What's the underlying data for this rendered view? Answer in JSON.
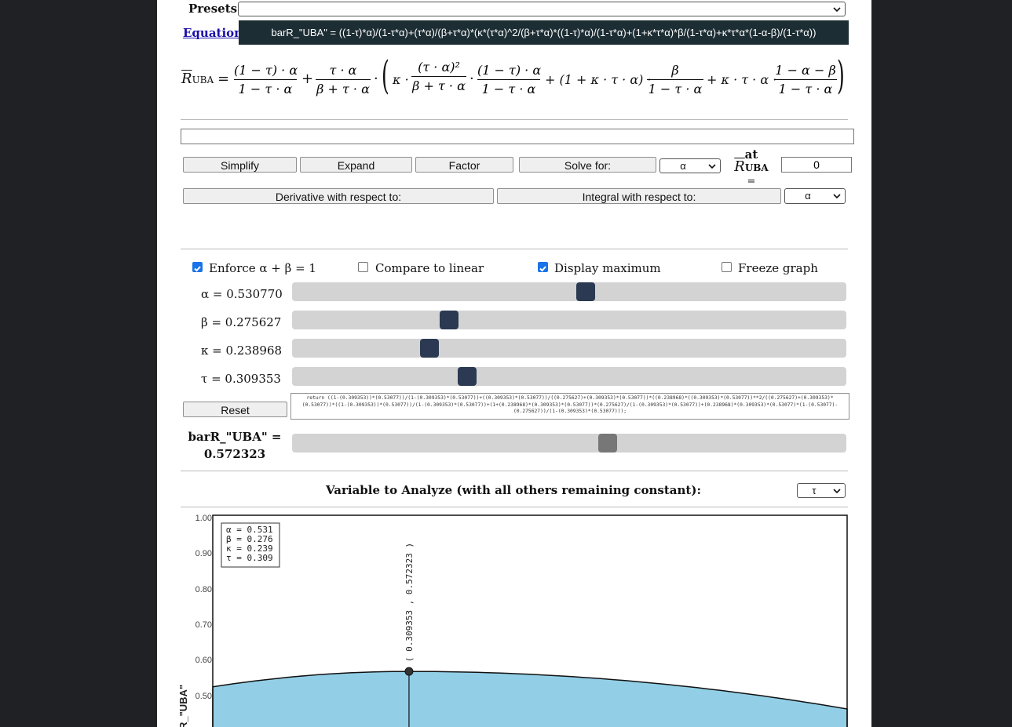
{
  "presets": {
    "label": "Presets",
    "selected": ""
  },
  "equation": {
    "link": "Equation",
    "text": "barR_\"UBA\" = ((1-τ)*α)/(1-τ*α)+(τ*α)/(β+τ*α)*(κ*(τ*α)^2/(β+τ*α)*((1-τ)*α)/(1-τ*α)+(1+κ*τ*α)*β/(1-τ*α)+κ*τ*α*(1-α-β)/(1-τ*α))"
  },
  "rendered": {
    "lhs": "R",
    "lhs_sub": "UBA",
    "f1_num": "(1 − τ) · α",
    "f1_den": "1 − τ · α",
    "f2_num": "τ · α",
    "f2_den": "β + τ · α",
    "f3_num": "(τ · α)²",
    "f3_den": "β + τ · α",
    "f4_num": "(1 − τ) · α",
    "f4_den": "1 − τ · α",
    "f5_num": "β",
    "f5_den": "1 − τ · α",
    "f6_num": "1 − α − β",
    "f6_den": "1 − τ · α",
    "eq": "=",
    "plus": "+",
    "dot": "·",
    "kappa_dot": "κ ·",
    "mid_term": "+ (1 + κ · τ · α) ·",
    "last_term": "+ κ · τ · α ·"
  },
  "tools": {
    "expression_input": "",
    "simplify": "Simplify",
    "expand": "Expand",
    "factor": "Factor",
    "solve_for": "Solve for:",
    "solve_var": "α",
    "at_label": "at",
    "at_symbol": "R",
    "at_sub": "UBA",
    "at_eq": "=",
    "at_value": "0",
    "derivative": "Derivative with respect to:",
    "integral": "Integral with respect to:",
    "integral_var": "α"
  },
  "options": {
    "enforce": {
      "label": "Enforce α + β = 1",
      "checked": true
    },
    "compare": {
      "label": "Compare to linear",
      "checked": false
    },
    "display_max": {
      "label": "Display maximum",
      "checked": true
    },
    "freeze": {
      "label": "Freeze graph",
      "checked": false
    }
  },
  "sliders": {
    "alpha": {
      "label": "α = 0.530770",
      "value": 0.53077
    },
    "beta": {
      "label": "β = 0.275627",
      "value": 0.275627
    },
    "kappa": {
      "label": "κ = 0.238968",
      "value": 0.238968
    },
    "tau": {
      "label": "τ = 0.309353",
      "value": 0.309353
    }
  },
  "reset": "Reset",
  "code": "return ((1-(0.309353))*(0.53077))/(1-(0.309353)*(0.53077))+((0.309353)*(0.53077))/((0.275627)+(0.309353)*(0.53077))*((0.238968)*((0.309353)*(0.53077))**2/((0.275627)+(0.309353)*(0.53077))*((1-(0.309353))*(0.53077))/(1-(0.309353)*(0.53077))+(1+(0.238968)*(0.309353)*(0.53077))*(0.275627)/(1-(0.309353)*(0.53077))+(0.238968)*(0.309353)*(0.53077)*(1-(0.53077)-(0.275627))/(1-(0.309353)*(0.53077)));",
  "result": {
    "label": "barR_\"UBA\" =",
    "value": "0.572323",
    "slider_value": 0.572323
  },
  "analyze": {
    "label": "Variable to Analyze (with all others remaining constant):",
    "selected": "τ"
  },
  "chart_data": {
    "type": "area",
    "ylabel": "R_\"UBA\"",
    "y_ticks": [
      "1.00",
      "0.90",
      "0.80",
      "0.70",
      "0.60",
      "0.50"
    ],
    "x": [
      0,
      0.309353,
      1
    ],
    "y": [
      0.529,
      0.572323,
      0.467
    ],
    "maximum_label": "( 0.309353 , 0.572323 )",
    "legend": [
      "α = 0.531",
      "β = 0.276",
      "κ = 0.239",
      "τ = 0.309"
    ]
  },
  "colors": {
    "fill": "#92cfe7",
    "equation_bg": "#1c2d33",
    "thumb": "#2b3a52",
    "check": "#1a73e8"
  }
}
